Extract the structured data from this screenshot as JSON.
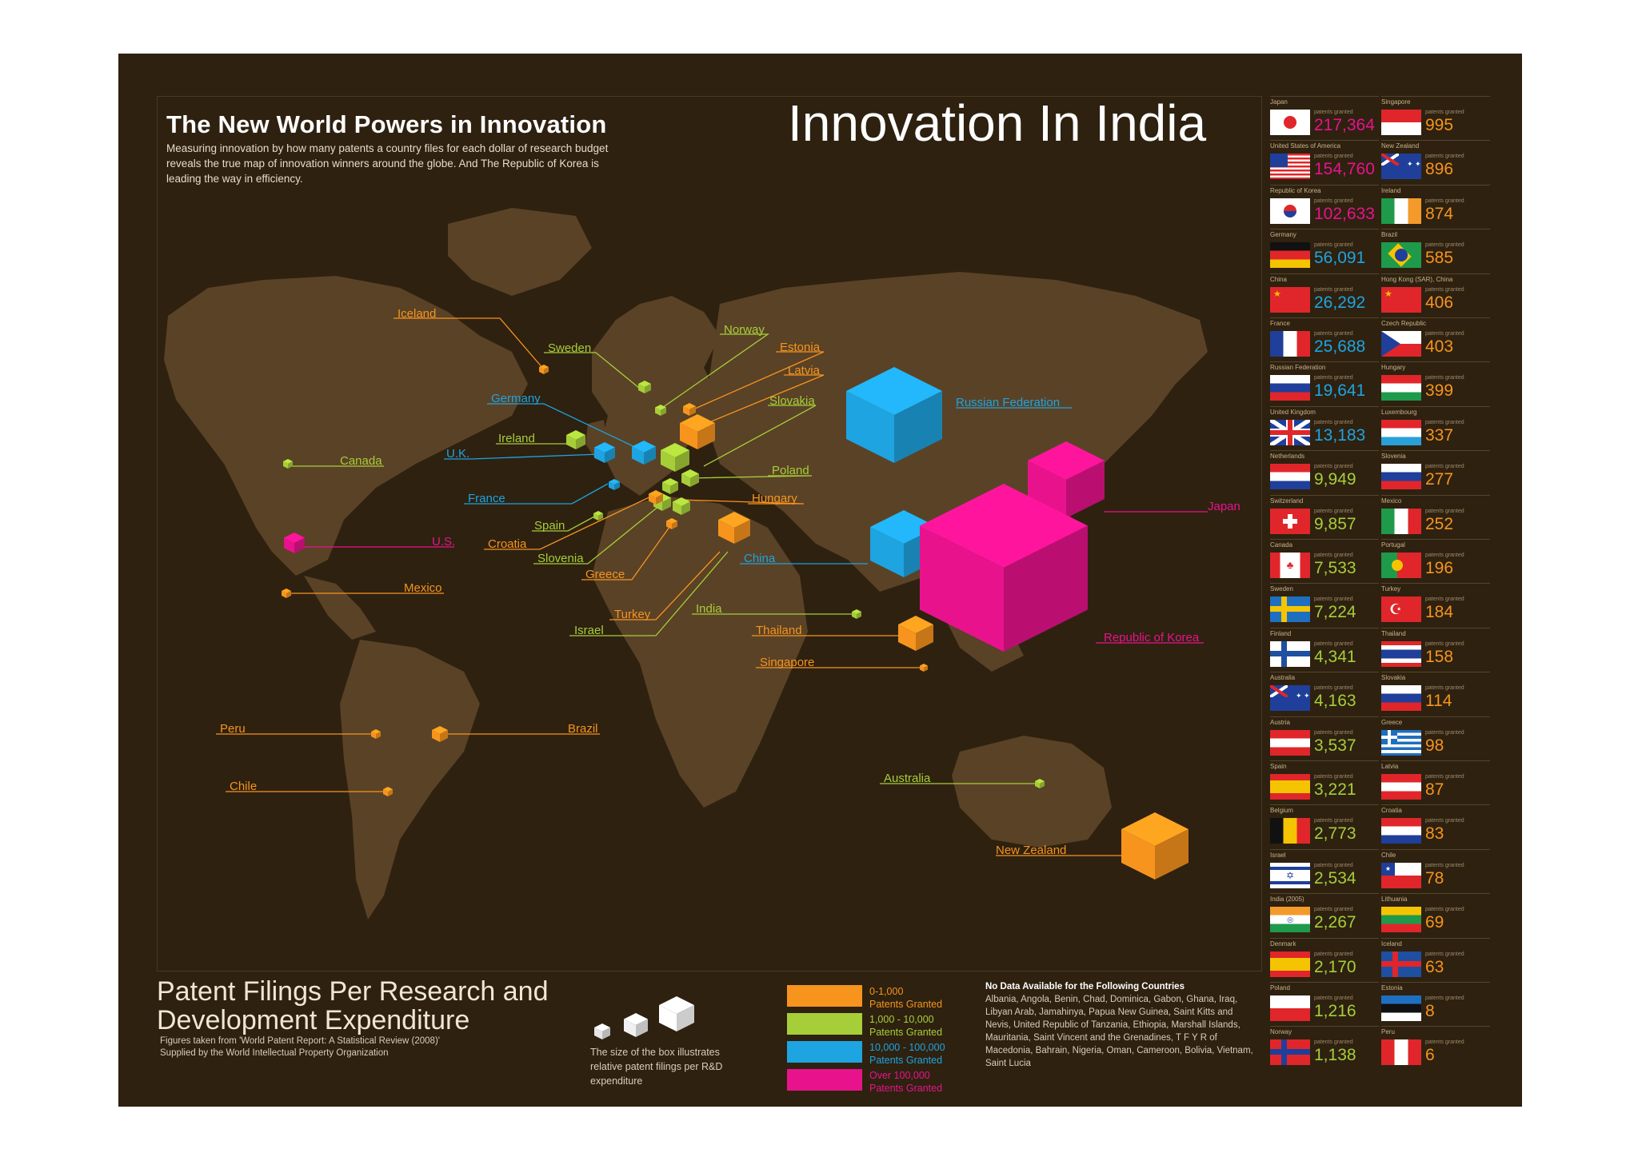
{
  "slide_title": "Innovation In India",
  "infographic": {
    "title": "The New World Powers in Innovation",
    "subtitle": "Measuring innovation by how many patents a country files for each dollar of research budget reveals the true map of innovation winners around the globe. And The Republic of Korea is leading the way in efficiency."
  },
  "bottom": {
    "main_title": "Patent Filings Per Research and Development Expenditure",
    "source_line1": "Figures taken from 'World Patent Report: A Statistical Review (2008)'",
    "source_line2": "Supplied by the World Intellectual Property Organization",
    "size_note": "The size of the box illustrates relative patent filings per R&D expenditure",
    "no_data_title": "No Data Available for the Following Countries",
    "no_data_list": "Albania, Angola, Benin, Chad, Dominica, Gabon, Ghana, Iraq, Libyan Arab, Jamahinya, Papua New Guinea, Saint Kitts and Nevis, United Republic of Tanzania, Ethiopia, Marshall Islands, Mauritania, Saint Vincent and the Grenadines, T F Y R of Macedonia, Bahrain, Nigeria, Oman, Cameroon, Bolivia, Vietnam, Saint Lucia"
  },
  "legend": [
    {
      "range": "0-1,000",
      "label": "Patents Granted",
      "color": "#f7941d"
    },
    {
      "range": "1,000 - 10,000",
      "label": "Patents Granted",
      "color": "#a6ce39"
    },
    {
      "range": "10,000 - 100,000",
      "label": "Patents Granted",
      "color": "#1ea4e0"
    },
    {
      "range": "Over 100,000",
      "label": "Patents Granted",
      "color": "#e8138c"
    }
  ],
  "patents_granted_label": "patents granted",
  "rank_col1": [
    {
      "country": "Japan",
      "value": "217,364",
      "flag": "japan"
    },
    {
      "country": "United States of America",
      "value": "154,760",
      "flag": "usa"
    },
    {
      "country": "Republic of Korea",
      "value": "102,633",
      "flag": "korea"
    },
    {
      "country": "Germany",
      "value": "56,091",
      "flag": "germany"
    },
    {
      "country": "China",
      "value": "26,292",
      "flag": "china"
    },
    {
      "country": "France",
      "value": "25,688",
      "flag": "france"
    },
    {
      "country": "Russian Federation",
      "value": "19,641",
      "flag": "russia"
    },
    {
      "country": "United Kingdom",
      "value": "13,183",
      "flag": "uk"
    },
    {
      "country": "Netherlands",
      "value": "9,949",
      "flag": "netherlands"
    },
    {
      "country": "Switzerland",
      "value": "9,857",
      "flag": "switzerland"
    },
    {
      "country": "Canada",
      "value": "7,533",
      "flag": "canada"
    },
    {
      "country": "Sweden",
      "value": "7,224",
      "flag": "sweden"
    },
    {
      "country": "Finland",
      "value": "4,341",
      "flag": "finland"
    },
    {
      "country": "Australia",
      "value": "4,163",
      "flag": "australia"
    },
    {
      "country": "Austria",
      "value": "3,537",
      "flag": "austria"
    },
    {
      "country": "Spain",
      "value": "3,221",
      "flag": "spain"
    },
    {
      "country": "Belgium",
      "value": "2,773",
      "flag": "belgium"
    },
    {
      "country": "Israel",
      "value": "2,534",
      "flag": "israel"
    },
    {
      "country": "India (2005)",
      "value": "2,267",
      "flag": "india"
    },
    {
      "country": "Denmark",
      "value": "2,170",
      "flag": "spain"
    },
    {
      "country": "Poland",
      "value": "1,216",
      "flag": "poland"
    },
    {
      "country": "Norway",
      "value": "1,138",
      "flag": "norway"
    }
  ],
  "rank_col2": [
    {
      "country": "Singapore",
      "value": "995",
      "flag": "singapore"
    },
    {
      "country": "New Zealand",
      "value": "896",
      "flag": "newzealand"
    },
    {
      "country": "Ireland",
      "value": "874",
      "flag": "ireland"
    },
    {
      "country": "Brazil",
      "value": "585",
      "flag": "brazil"
    },
    {
      "country": "Hong Kong (SAR), China",
      "value": "406",
      "flag": "hongkong"
    },
    {
      "country": "Czech Republic",
      "value": "403",
      "flag": "czech"
    },
    {
      "country": "Hungary",
      "value": "399",
      "flag": "hungary"
    },
    {
      "country": "Luxembourg",
      "value": "337",
      "flag": "luxembourg"
    },
    {
      "country": "Slovenia",
      "value": "277",
      "flag": "slovenia"
    },
    {
      "country": "Mexico",
      "value": "252",
      "flag": "mexico"
    },
    {
      "country": "Portugal",
      "value": "196",
      "flag": "portugal"
    },
    {
      "country": "Turkey",
      "value": "184",
      "flag": "turkey"
    },
    {
      "country": "Thailand",
      "value": "158",
      "flag": "thailand"
    },
    {
      "country": "Slovakia",
      "value": "114",
      "flag": "slovakia"
    },
    {
      "country": "Greece",
      "value": "98",
      "flag": "greece"
    },
    {
      "country": "Latvia",
      "value": "87",
      "flag": "latvia"
    },
    {
      "country": "Croatia",
      "value": "83",
      "flag": "croatia"
    },
    {
      "country": "Chile",
      "value": "78",
      "flag": "chile"
    },
    {
      "country": "Lithuania",
      "value": "69",
      "flag": "lithuania"
    },
    {
      "country": "Iceland",
      "value": "63",
      "flag": "iceland"
    },
    {
      "country": "Estonia",
      "value": "8",
      "flag": "estonia"
    },
    {
      "country": "Peru",
      "value": "6",
      "flag": "peru"
    }
  ],
  "map_labels": {
    "iceland": "Iceland",
    "sweden": "Sweden",
    "norway": "Norway",
    "estonia": "Estonia",
    "latvia": "Latvia",
    "slovakia": "Slovakia",
    "germany": "Germany",
    "ireland": "Ireland",
    "uk": "U.K.",
    "canada": "Canada",
    "france": "France",
    "poland": "Poland",
    "hungary": "Hungary",
    "spain": "Spain",
    "croatia": "Croatia",
    "us": "U.S.",
    "slovenia": "Slovenia",
    "greece": "Greece",
    "china": "China",
    "mexico": "Mexico",
    "turkey": "Turkey",
    "india": "India",
    "israel": "Israel",
    "thailand": "Thailand",
    "singapore": "Singapore",
    "russia": "Russian Federation",
    "japan": "Japan",
    "korea": "Republic of Korea",
    "peru": "Peru",
    "brazil": "Brazil",
    "chile": "Chile",
    "australia": "Australia",
    "newzealand": "New Zealand"
  }
}
